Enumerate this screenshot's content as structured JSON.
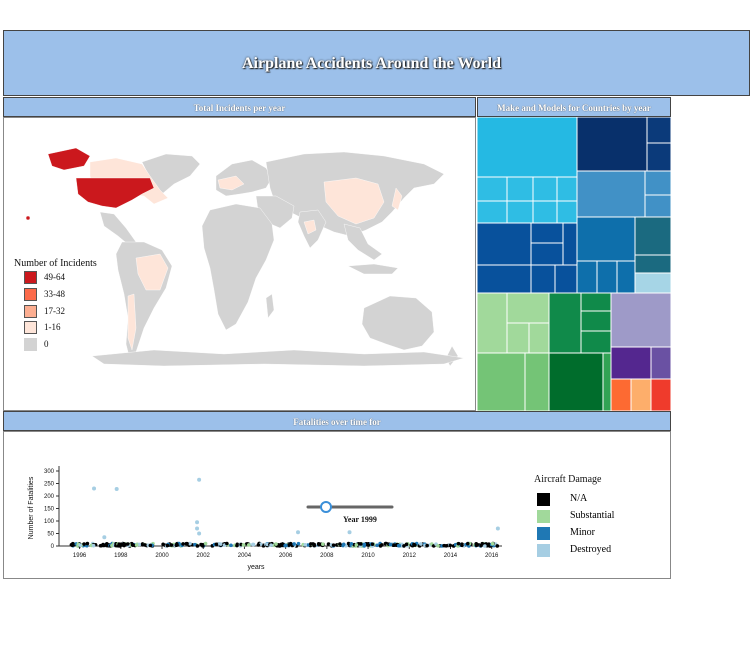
{
  "header": {
    "title": "Airplane Accidents Around the World"
  },
  "map": {
    "title": "Total Incidents per year",
    "legend": {
      "title": "Number of Incidents",
      "items": [
        {
          "label": "49-64",
          "color": "#cb181d"
        },
        {
          "label": "33-48",
          "color": "#fb6a4a"
        },
        {
          "label": "17-32",
          "color": "#fcae91"
        },
        {
          "label": "1-16",
          "color": "#fee5d9"
        },
        {
          "label": "0",
          "color": "#d3d3d3"
        }
      ]
    }
  },
  "treemap": {
    "title": "Make and Models for Countries by year"
  },
  "fatalities": {
    "title": "Fatalities over time for",
    "slider_label": "Year 1999",
    "slider_value": 1999,
    "legend": {
      "title": "Aircraft Damage",
      "items": [
        {
          "label": "N/A",
          "color": "#000000"
        },
        {
          "label": "Substantial",
          "color": "#a1d99b"
        },
        {
          "label": "Minor",
          "color": "#1f78b4"
        },
        {
          "label": "Destroyed",
          "color": "#a6cee3"
        }
      ]
    }
  },
  "chart_data": {
    "type": "scatter",
    "xlabel": "years",
    "ylabel": "Number of Fatalities",
    "xlim": [
      1995,
      2016.5
    ],
    "ylim": [
      0,
      320
    ],
    "x_ticks": [
      "1996",
      "1998",
      "2000",
      "2002",
      "2004",
      "2006",
      "2008",
      "2010",
      "2012",
      "2014",
      "2016"
    ],
    "y_ticks": [
      "0",
      "50",
      "100",
      "150",
      "200",
      "250",
      "300"
    ],
    "series": [
      {
        "name": "Destroyed",
        "color": "#a6cee3",
        "points": [
          [
            1996.7,
            230
          ],
          [
            1997.2,
            35
          ],
          [
            1997.8,
            228
          ],
          [
            2001.8,
            265
          ],
          [
            2001.7,
            95
          ],
          [
            2001.7,
            70
          ],
          [
            2001.8,
            50
          ],
          [
            2006.6,
            55
          ],
          [
            2009.1,
            55
          ],
          [
            2016.3,
            70
          ]
        ]
      }
    ]
  }
}
